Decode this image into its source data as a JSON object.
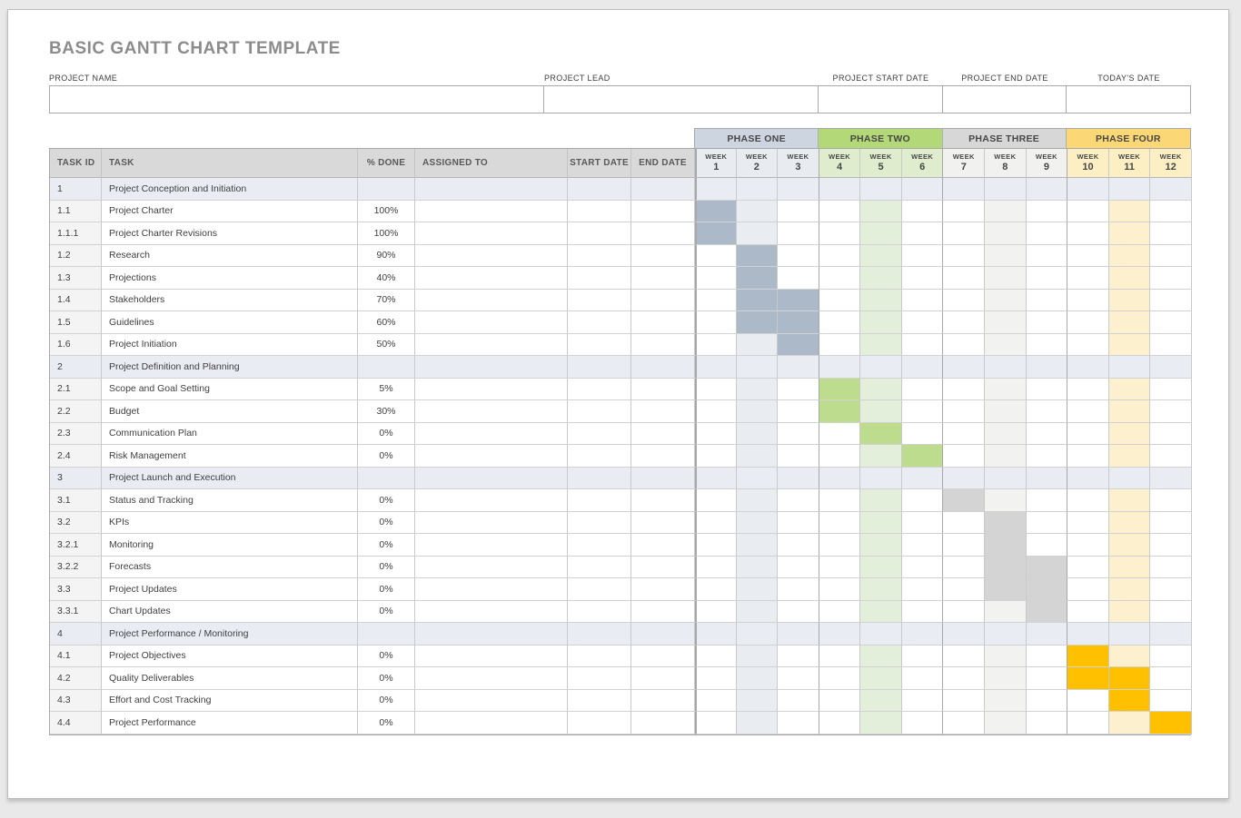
{
  "title": "BASIC GANTT CHART TEMPLATE",
  "fields": [
    {
      "label": "PROJECT NAME",
      "value": "",
      "align": "left"
    },
    {
      "label": "PROJECT LEAD",
      "value": "",
      "align": "left"
    },
    {
      "label": "PROJECT START DATE",
      "value": "",
      "align": "center"
    },
    {
      "label": "PROJECT END DATE",
      "value": "",
      "align": "center"
    },
    {
      "label": "TODAY'S DATE",
      "value": "",
      "align": "center"
    }
  ],
  "table": {
    "columns": [
      {
        "key": "id",
        "label": "TASK ID"
      },
      {
        "key": "task",
        "label": "TASK"
      },
      {
        "key": "done",
        "label": "% DONE"
      },
      {
        "key": "assigned",
        "label": "ASSIGNED TO"
      },
      {
        "key": "start",
        "label": "START DATE"
      },
      {
        "key": "end",
        "label": "END DATE"
      }
    ],
    "week_label": "WEEK",
    "week_numbers": [
      "1",
      "2",
      "3",
      "4",
      "5",
      "6",
      "7",
      "8",
      "9",
      "10",
      "11",
      "12"
    ],
    "phases": [
      {
        "label": "PHASE ONE",
        "header_color": "#cdd5e0",
        "week_header_color": "#e8ecf1",
        "bar_color": "#acb9c9",
        "tint_color": "#e9edf2",
        "tint_week": 2
      },
      {
        "label": "PHASE TWO",
        "header_color": "#b2d878",
        "week_header_color": "#dfedce",
        "bar_color": "#bddc8e",
        "tint_color": "#e3efdb",
        "tint_week": 5
      },
      {
        "label": "PHASE THREE",
        "header_color": "#d7d7d7",
        "week_header_color": "#f1f1ef",
        "bar_color": "#d4d4d4",
        "tint_color": "#f2f2f0",
        "tint_week": 8
      },
      {
        "label": "PHASE FOUR",
        "header_color": "#fbd875",
        "week_header_color": "#fcefc3",
        "bar_color": "#ffc000",
        "tint_color": "#fcf0ce",
        "tint_week": 11
      }
    ],
    "colors": {
      "header_bg": "#d9d9d9",
      "section_row_bg": "#e9edf3",
      "task_id_col_bg": "#f4f4f4",
      "body_bg": "#ffffff"
    },
    "rows": [
      {
        "id": "1",
        "task": "Project Conception and Initiation",
        "done": "",
        "assigned": "",
        "start": "",
        "end": "",
        "section": true,
        "bars": []
      },
      {
        "id": "1.1",
        "task": "Project Charter",
        "done": "100%",
        "assigned": "",
        "start": "",
        "end": "",
        "section": false,
        "bars": [
          1
        ]
      },
      {
        "id": "1.1.1",
        "task": "Project Charter Revisions",
        "done": "100%",
        "assigned": "",
        "start": "",
        "end": "",
        "section": false,
        "bars": [
          1
        ]
      },
      {
        "id": "1.2",
        "task": "Research",
        "done": "90%",
        "assigned": "",
        "start": "",
        "end": "",
        "section": false,
        "bars": [
          2
        ]
      },
      {
        "id": "1.3",
        "task": "Projections",
        "done": "40%",
        "assigned": "",
        "start": "",
        "end": "",
        "section": false,
        "bars": [
          2
        ]
      },
      {
        "id": "1.4",
        "task": "Stakeholders",
        "done": "70%",
        "assigned": "",
        "start": "",
        "end": "",
        "section": false,
        "bars": [
          2,
          3
        ]
      },
      {
        "id": "1.5",
        "task": "Guidelines",
        "done": "60%",
        "assigned": "",
        "start": "",
        "end": "",
        "section": false,
        "bars": [
          2,
          3
        ]
      },
      {
        "id": "1.6",
        "task": "Project Initiation",
        "done": "50%",
        "assigned": "",
        "start": "",
        "end": "",
        "section": false,
        "bars": [
          3
        ]
      },
      {
        "id": "2",
        "task": "Project Definition and Planning",
        "done": "",
        "assigned": "",
        "start": "",
        "end": "",
        "section": true,
        "bars": []
      },
      {
        "id": "2.1",
        "task": "Scope and Goal Setting",
        "done": "5%",
        "assigned": "",
        "start": "",
        "end": "",
        "section": false,
        "bars": [
          4
        ]
      },
      {
        "id": "2.2",
        "task": "Budget",
        "done": "30%",
        "assigned": "",
        "start": "",
        "end": "",
        "section": false,
        "bars": [
          4
        ]
      },
      {
        "id": "2.3",
        "task": "Communication Plan",
        "done": "0%",
        "assigned": "",
        "start": "",
        "end": "",
        "section": false,
        "bars": [
          5
        ]
      },
      {
        "id": "2.4",
        "task": "Risk Management",
        "done": "0%",
        "assigned": "",
        "start": "",
        "end": "",
        "section": false,
        "bars": [
          6
        ]
      },
      {
        "id": "3",
        "task": "Project Launch and Execution",
        "done": "",
        "assigned": "",
        "start": "",
        "end": "",
        "section": true,
        "bars": []
      },
      {
        "id": "3.1",
        "task": "Status and Tracking",
        "done": "0%",
        "assigned": "",
        "start": "",
        "end": "",
        "section": false,
        "bars": [
          7
        ]
      },
      {
        "id": "3.2",
        "task": "KPIs",
        "done": "0%",
        "assigned": "",
        "start": "",
        "end": "",
        "section": false,
        "bars": [
          8
        ]
      },
      {
        "id": "3.2.1",
        "task": "Monitoring",
        "done": "0%",
        "assigned": "",
        "start": "",
        "end": "",
        "section": false,
        "bars": [
          8
        ]
      },
      {
        "id": "3.2.2",
        "task": "Forecasts",
        "done": "0%",
        "assigned": "",
        "start": "",
        "end": "",
        "section": false,
        "bars": [
          8,
          9
        ]
      },
      {
        "id": "3.3",
        "task": "Project Updates",
        "done": "0%",
        "assigned": "",
        "start": "",
        "end": "",
        "section": false,
        "bars": [
          8,
          9
        ]
      },
      {
        "id": "3.3.1",
        "task": "Chart Updates",
        "done": "0%",
        "assigned": "",
        "start": "",
        "end": "",
        "section": false,
        "bars": [
          9
        ]
      },
      {
        "id": "4",
        "task": "Project Performance / Monitoring",
        "done": "",
        "assigned": "",
        "start": "",
        "end": "",
        "section": true,
        "bars": []
      },
      {
        "id": "4.1",
        "task": "Project Objectives",
        "done": "0%",
        "assigned": "",
        "start": "",
        "end": "",
        "section": false,
        "bars": [
          10
        ]
      },
      {
        "id": "4.2",
        "task": "Quality Deliverables",
        "done": "0%",
        "assigned": "",
        "start": "",
        "end": "",
        "section": false,
        "bars": [
          10,
          11
        ]
      },
      {
        "id": "4.3",
        "task": "Effort and Cost Tracking",
        "done": "0%",
        "assigned": "",
        "start": "",
        "end": "",
        "section": false,
        "bars": [
          11
        ]
      },
      {
        "id": "4.4",
        "task": "Project Performance",
        "done": "0%",
        "assigned": "",
        "start": "",
        "end": "",
        "section": false,
        "bars": [
          12
        ]
      }
    ]
  }
}
